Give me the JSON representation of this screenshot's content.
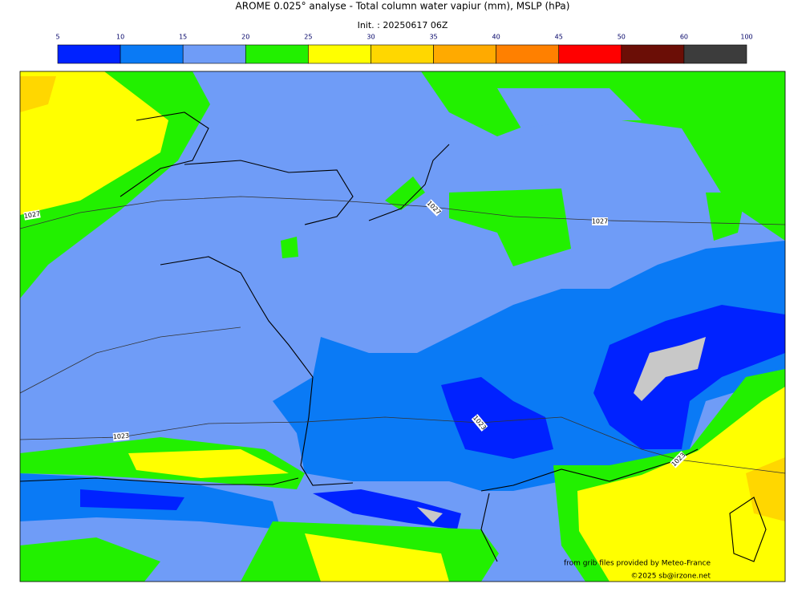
{
  "title": "AROME 0.025° analyse - Total column water vapiur (mm), MSLP (hPa)",
  "subtitle": "Init. : 20250617 06Z",
  "colorbar": {
    "ticks": [
      5,
      10,
      15,
      20,
      25,
      30,
      35,
      40,
      45,
      50,
      60,
      100
    ],
    "colors": [
      "#0022ff",
      "#0a7af5",
      "#6f9cf7",
      "#22f000",
      "#ffff00",
      "#ffd700",
      "#ffaa00",
      "#ff8000",
      "#ff0000",
      "#6b0e06",
      "#3c3c3c"
    ]
  },
  "isobar_labels": [
    "1027",
    "1027",
    "1027",
    "1023",
    "1023",
    "1023"
  ],
  "credits": [
    "from grib files provided by Meteo-France",
    "©2025 sb@irzone.net"
  ]
}
